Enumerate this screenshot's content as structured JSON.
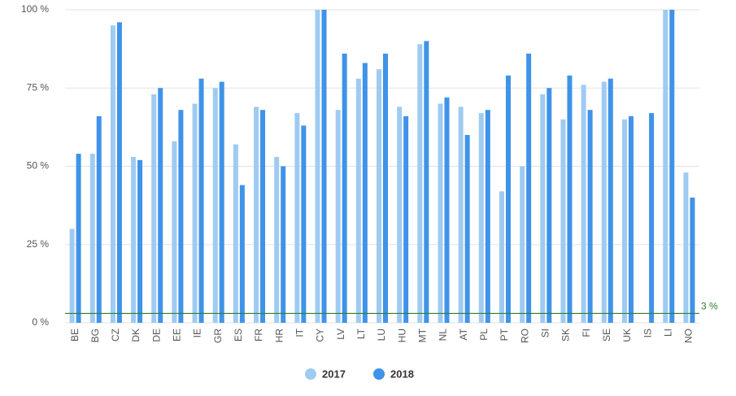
{
  "chart_data": {
    "type": "bar",
    "categories": [
      "BE",
      "BG",
      "CZ",
      "DK",
      "DE",
      "EE",
      "IE",
      "GR",
      "ES",
      "FR",
      "HR",
      "IT",
      "CY",
      "LV",
      "LT",
      "LU",
      "HU",
      "MT",
      "NL",
      "AT",
      "PL",
      "PT",
      "RO",
      "SI",
      "SK",
      "FI",
      "SE",
      "UK",
      "IS",
      "LI",
      "NO"
    ],
    "series": [
      {
        "name": "2017",
        "color": "#9fcbf2",
        "values": [
          30,
          54,
          95,
          53,
          73,
          58,
          70,
          75,
          57,
          69,
          53,
          67,
          100,
          68,
          78,
          81,
          69,
          89,
          70,
          69,
          67,
          42,
          50,
          73,
          65,
          76,
          77,
          65,
          null,
          100,
          48
        ]
      },
      {
        "name": "2018",
        "color": "#3f93e8",
        "values": [
          54,
          66,
          96,
          52,
          75,
          68,
          78,
          77,
          44,
          68,
          50,
          63,
          100,
          86,
          83,
          86,
          66,
          90,
          72,
          60,
          68,
          79,
          86,
          75,
          79,
          68,
          78,
          66,
          67,
          100,
          40
        ]
      }
    ],
    "ylim": [
      0,
      100
    ],
    "yticks": [
      {
        "value": 0,
        "label": "0 %"
      },
      {
        "value": 25,
        "label": "25 %"
      },
      {
        "value": 50,
        "label": "50 %"
      },
      {
        "value": 75,
        "label": "75 %"
      },
      {
        "value": 100,
        "label": "100 %"
      }
    ],
    "grid": true,
    "target": {
      "value": 3,
      "label": "3 %",
      "color": "#2e7d32"
    },
    "legend": "bottom"
  }
}
